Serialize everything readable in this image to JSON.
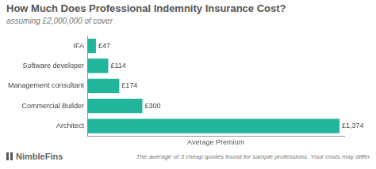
{
  "chart_data": {
    "type": "bar",
    "orientation": "horizontal",
    "title": "How Much Does Professional Indemnity Insurance Cost?",
    "subtitle": "assuming £2,000,000 of cover",
    "x_label": "Average Premium",
    "categories": [
      "IFA",
      "Software developer",
      "Management consultant",
      "Commercial Builder",
      "Architect"
    ],
    "values": [
      47,
      114,
      174,
      300,
      1374
    ],
    "value_labels": [
      "£47",
      "£114",
      "£174",
      "£300",
      "£1,374"
    ],
    "data_labels": true,
    "color": "#22b59b",
    "xlim": [
      0,
      1400
    ],
    "grid": false,
    "tick_labels": "y",
    "brand": "NimbleFins",
    "note": "The average of 3 cheap quotes found for sample professions. Your costs may differ."
  }
}
